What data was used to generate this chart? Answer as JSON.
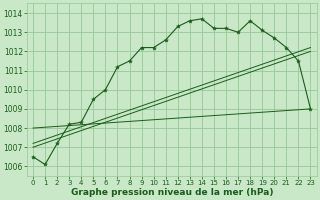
{
  "title": "Graphe pression niveau de la mer (hPa)",
  "background_color": "#c8e8c8",
  "grid_color": "#98c898",
  "line_color_main": "#1a5c1a",
  "ylim": [
    1005.5,
    1014.5
  ],
  "xlim": [
    -0.5,
    23.5
  ],
  "yticks": [
    1006,
    1007,
    1008,
    1009,
    1010,
    1011,
    1012,
    1013,
    1014
  ],
  "xticks": [
    0,
    1,
    2,
    3,
    4,
    5,
    6,
    7,
    8,
    9,
    10,
    11,
    12,
    13,
    14,
    15,
    16,
    17,
    18,
    19,
    20,
    21,
    22,
    23
  ],
  "pressure_values": [
    1006.5,
    1006.1,
    1007.2,
    1008.2,
    1008.3,
    1009.5,
    1010.0,
    1011.2,
    1011.5,
    1012.2,
    1012.2,
    1012.6,
    1013.3,
    1013.6,
    1013.7,
    1013.2,
    1013.2,
    1013.0,
    1013.6,
    1013.1,
    1012.7,
    1012.2,
    1011.5,
    1009.0
  ],
  "trend_line1": [
    [
      0,
      1007.0
    ],
    [
      23,
      1012.0
    ]
  ],
  "trend_line2": [
    [
      0,
      1007.2
    ],
    [
      23,
      1012.2
    ]
  ],
  "flat_line": [
    [
      0,
      1008.0
    ],
    [
      23,
      1009.0
    ]
  ],
  "title_fontsize": 6.5
}
